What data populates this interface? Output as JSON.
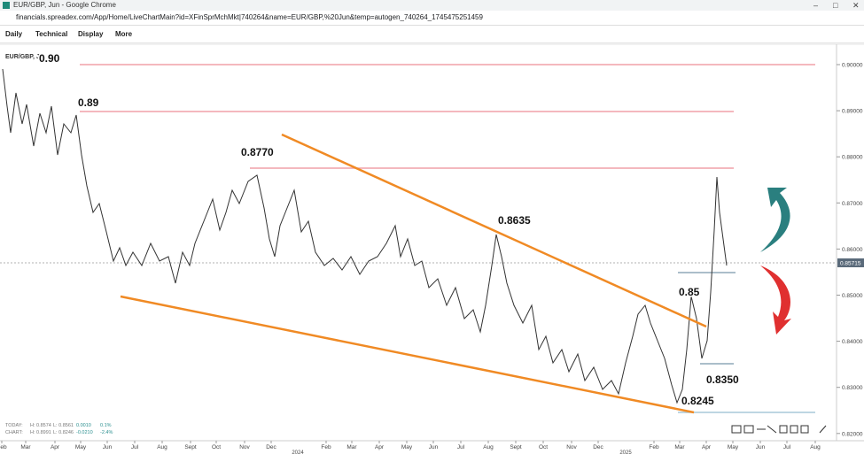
{
  "window": {
    "title": "EUR/GBP, Jun - Google Chrome"
  },
  "address_bar": {
    "url": "financials.spreadex.com/App/Home/LiveChartMain?id=XFinSprMchMkt|740264&name=EUR/GBP,%20Jun&temp=autogen_740264_1745475251459"
  },
  "toolbar": {
    "menus": [
      "Daily",
      "Technical",
      "Display",
      "More"
    ]
  },
  "chart": {
    "instrument": "EUR/GBP, JU",
    "annotations": [
      "0.90",
      "0.89",
      "0.8770",
      "0.8635",
      "0.85",
      "0.8350",
      "0.8245"
    ],
    "price_axis": [
      "0.90000",
      "0.89000",
      "0.88000",
      "0.87000",
      "0.86000",
      "0.85000",
      "0.84000",
      "0.83000",
      "0.82000"
    ],
    "current_price": "0.85715",
    "months": [
      "Feb",
      "Mar",
      "Apr",
      "May",
      "Jun",
      "Jul",
      "Aug",
      "Sept",
      "Oct",
      "Nov",
      "Dec",
      "Feb",
      "Mar",
      "Apr",
      "May",
      "Jun",
      "Jul",
      "Aug",
      "Sept",
      "Oct",
      "Nov",
      "Dec",
      "Feb",
      "Mar",
      "Apr",
      "May",
      "Jun",
      "Jul",
      "Aug"
    ],
    "years": [
      "2024",
      "2025"
    ],
    "stats": [
      [
        "TODAY:",
        "H: 0.8574",
        "L: 0.8561",
        "0.0010",
        "0.1%"
      ],
      [
        "CHART:",
        "H: 0.8991",
        "L: 0.8246",
        "-0.0210",
        "-2.4%"
      ]
    ]
  }
}
